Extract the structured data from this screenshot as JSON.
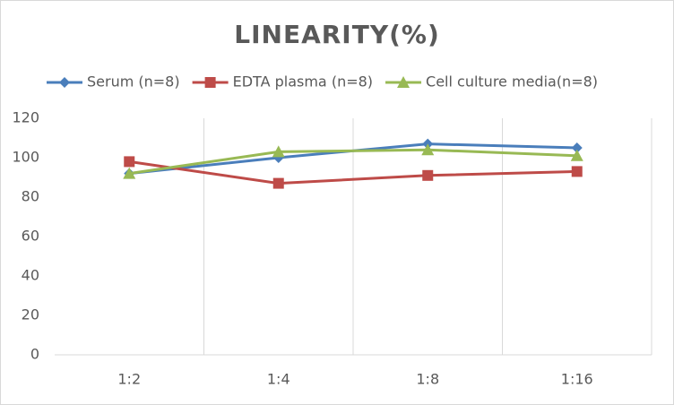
{
  "chart_data": {
    "type": "line",
    "title": "LINEARITY(%)",
    "categories": [
      "1:2",
      "1:4",
      "1:8",
      "1:16"
    ],
    "series": [
      {
        "name": "Serum (n=8)",
        "color": "#4a7ebb",
        "marker": "diamond",
        "values": [
          92,
          100,
          107,
          105
        ]
      },
      {
        "name": "EDTA plasma (n=8)",
        "color": "#be4b48",
        "marker": "square",
        "values": [
          98,
          87,
          91,
          93
        ]
      },
      {
        "name": "Cell culture media(n=8)",
        "color": "#98b954",
        "marker": "triangle",
        "values": [
          92,
          103,
          104,
          101
        ]
      }
    ],
    "ylim": [
      0,
      120
    ],
    "yticks": [
      0,
      20,
      40,
      60,
      80,
      100,
      120
    ],
    "grid": "x",
    "legend": "top"
  }
}
